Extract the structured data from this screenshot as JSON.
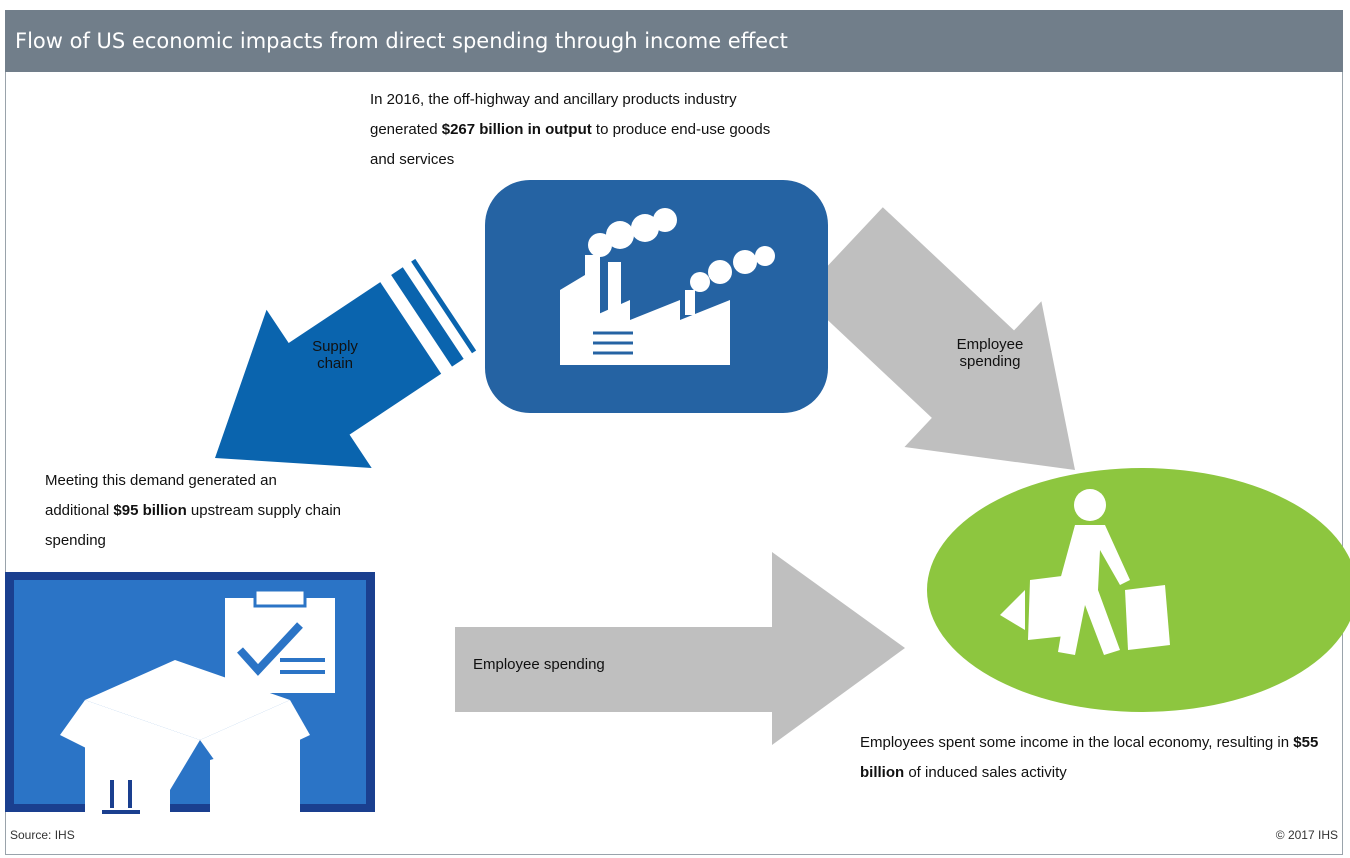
{
  "header": {
    "title": "Flow of US economic impacts from direct spending through income effect"
  },
  "nodes": [
    {
      "parts": [
        {
          "text": "In 2016, the off-highway and ancillary products industry generated ",
          "bold": false
        },
        {
          "text": "$267 billion in output",
          "bold": true
        },
        {
          "text": " to produce  end-use goods and services",
          "bold": false
        }
      ]
    },
    {
      "parts": [
        {
          "text": "Meeting this demand generated an additional ",
          "bold": false
        },
        {
          "text": "$95 billion",
          "bold": true
        },
        {
          "text": " upstream supply chain spending",
          "bold": false
        }
      ]
    },
    {
      "parts": [
        {
          "text": "Employees spent some income in the local economy, resulting in ",
          "bold": false
        },
        {
          "text": "$55 billion",
          "bold": true
        },
        {
          "text": " of induced sales activity",
          "bold": false
        }
      ]
    }
  ],
  "arrows": [
    {
      "label": "Supply chain"
    },
    {
      "label": "Employee spending"
    },
    {
      "label": "Employee spending"
    }
  ],
  "footer": {
    "source": "Source: IHS",
    "copyright": "© 2017 IHS"
  }
}
